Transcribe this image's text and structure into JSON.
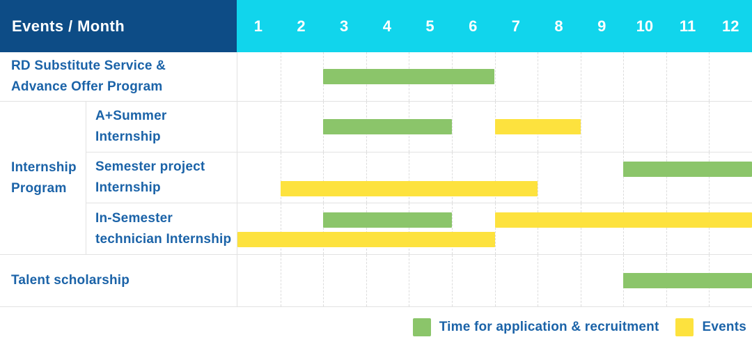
{
  "header": {
    "row_label": "Events / Month",
    "months": [
      "1",
      "2",
      "3",
      "4",
      "5",
      "6",
      "7",
      "8",
      "9",
      "10",
      "11",
      "12"
    ]
  },
  "chart_data": {
    "type": "bar",
    "subtype": "gantt-table",
    "row_header": "Events / Month",
    "x_axis": {
      "unit": "month",
      "ticks": [
        1,
        2,
        3,
        4,
        5,
        6,
        7,
        8,
        9,
        10,
        11,
        12
      ],
      "range_months": [
        1,
        12
      ]
    },
    "series_colors": {
      "Time for application & recruitment": "#8bc56a",
      "Events": "#fde23e"
    },
    "rows": [
      {
        "group": "",
        "label": "RD Substitute Service &\nAdvance Offer Program",
        "bars": [
          {
            "series": "Time for application & recruitment",
            "start_month": 3,
            "end_month": 6,
            "lane": "middle"
          }
        ]
      },
      {
        "group": "Internship\nProgram",
        "label": "A+Summer\nInternship",
        "bars": [
          {
            "series": "Time for application & recruitment",
            "start_month": 3,
            "end_month": 5,
            "lane": "middle"
          },
          {
            "series": "Events",
            "start_month": 7,
            "end_month": 8,
            "lane": "middle"
          }
        ]
      },
      {
        "group": "Internship\nProgram",
        "label": "Semester project\nInternship",
        "bars": [
          {
            "series": "Time for application & recruitment",
            "start_month": 10,
            "end_month": 12,
            "lane": "upper"
          },
          {
            "series": "Events",
            "start_month": 2,
            "end_month": 7,
            "lane": "lower"
          }
        ]
      },
      {
        "group": "Internship\nProgram",
        "label": "In-Semester\ntechnician Internship",
        "bars": [
          {
            "series": "Time for application & recruitment",
            "start_month": 3,
            "end_month": 5,
            "lane": "upper"
          },
          {
            "series": "Events",
            "start_month": 7,
            "end_month": 12,
            "lane": "upper"
          },
          {
            "series": "Events",
            "start_month": 1,
            "end_month": 6,
            "lane": "lower"
          }
        ]
      },
      {
        "group": "",
        "label": "Talent scholarship",
        "bars": [
          {
            "series": "Time for application & recruitment",
            "start_month": 10,
            "end_month": 12,
            "lane": "middle"
          }
        ]
      }
    ],
    "legend_position": "bottom-right"
  },
  "legend": {
    "items": [
      {
        "label": "Time for application & recruitment",
        "color": "#8bc56a"
      },
      {
        "label": "Events",
        "color": "#fde23e"
      }
    ]
  },
  "colors": {
    "header_bg": "#0d4c86",
    "months_bg": "#11d5ec",
    "header_text": "#ffffff",
    "label_text": "#1b63a8",
    "grid_line": "#dcdcdc",
    "row_border": "#e2e2e2",
    "bar_green": "#8bc56a",
    "bar_yellow": "#fde23e"
  }
}
